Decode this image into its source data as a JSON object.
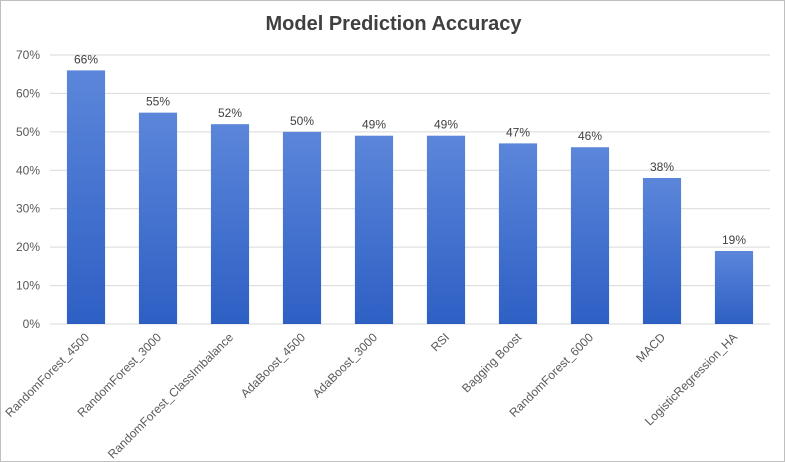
{
  "chart_data": {
    "type": "bar",
    "title": "Model Prediction Accuracy",
    "xlabel": "",
    "ylabel": "",
    "categories": [
      "RandomForest_4500",
      "RandomForest_3000",
      "RandomForest_ClassImbalance",
      "AdaBoost_4500",
      "AdaBoost_3000",
      "RSI",
      "Bagging Boost",
      "RandomForest_6000",
      "MACD",
      "LogisticRegression_HA"
    ],
    "values": [
      0.66,
      0.55,
      0.52,
      0.5,
      0.49,
      0.49,
      0.47,
      0.46,
      0.38,
      0.19
    ],
    "data_labels": [
      "66%",
      "55%",
      "52%",
      "50%",
      "49%",
      "49%",
      "47%",
      "46%",
      "38%",
      "19%"
    ],
    "ylim": [
      0,
      0.7
    ],
    "yticks": [
      0,
      0.1,
      0.2,
      0.3,
      0.4,
      0.5,
      0.6,
      0.7
    ],
    "ytick_labels": [
      "0%",
      "10%",
      "20%",
      "30%",
      "40%",
      "50%",
      "60%",
      "70%"
    ],
    "grid": true,
    "legend": "none",
    "colors": {
      "bar_top": "#5B86DA",
      "bar_bottom": "#2E5FC4",
      "grid": "#d9d9d9"
    }
  }
}
